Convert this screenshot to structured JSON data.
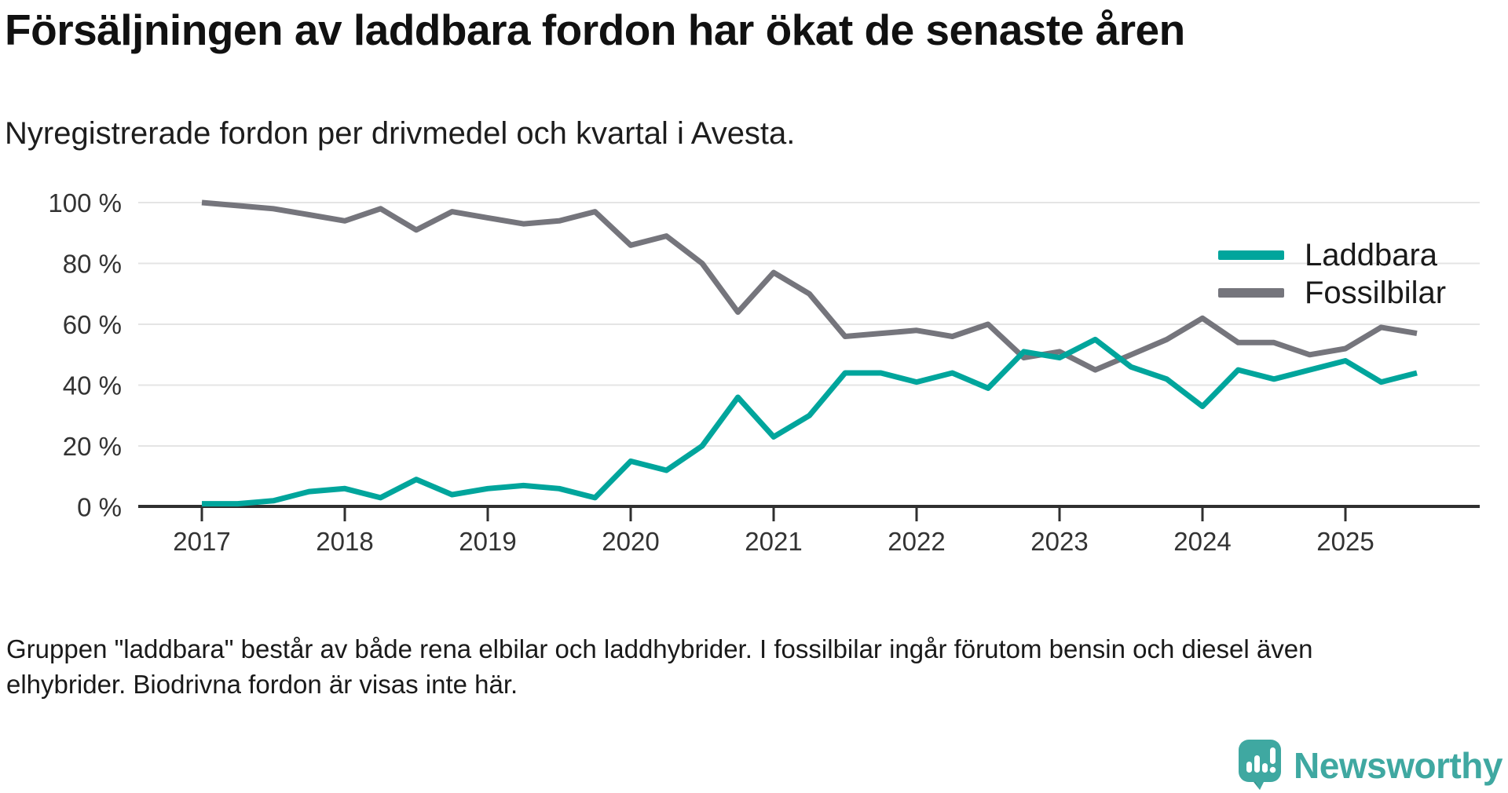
{
  "header": {
    "title": "Försäljningen av laddbara fordon har ökat de senaste åren",
    "subtitle": "Nyregistrerade fordon per drivmedel och kvartal i Avesta."
  },
  "legend": {
    "items": [
      {
        "label": "Laddbara",
        "color": "#00a59c"
      },
      {
        "label": "Fossilbilar",
        "color": "#75757c"
      }
    ]
  },
  "footer": {
    "note_line1": "Gruppen \"laddbara\" består av både rena elbilar och laddhybrider. I fossilbilar ingår förutom bensin och diesel även",
    "note_line2": "elhybrider. Biodrivna fordon är visas inte här."
  },
  "branding": {
    "name": "Newsworthy",
    "color": "#3fa8a1",
    "icon": "newsworthy-speech-bubble-chart-icon"
  },
  "chart_data": {
    "type": "line",
    "title": "Försäljningen av laddbara fordon har ökat de senaste åren",
    "subtitle": "Nyregistrerade fordon per drivmedel och kvartal i Avesta.",
    "x_unit": "quarter",
    "x": [
      "2017 Q1",
      "2017 Q2",
      "2017 Q3",
      "2017 Q4",
      "2018 Q1",
      "2018 Q2",
      "2018 Q3",
      "2018 Q4",
      "2019 Q1",
      "2019 Q2",
      "2019 Q3",
      "2019 Q4",
      "2020 Q1",
      "2020 Q2",
      "2020 Q3",
      "2020 Q4",
      "2021 Q1",
      "2021 Q2",
      "2021 Q3",
      "2021 Q4",
      "2022 Q1",
      "2022 Q2",
      "2022 Q3",
      "2022 Q4",
      "2023 Q1",
      "2023 Q2",
      "2023 Q3",
      "2023 Q4",
      "2024 Q1",
      "2024 Q2",
      "2024 Q3",
      "2024 Q4",
      "2025 Q1",
      "2025 Q2",
      "2025 Q3"
    ],
    "series": [
      {
        "name": "Laddbara",
        "color": "#00a59c",
        "values": [
          1,
          1,
          2,
          5,
          6,
          3,
          9,
          4,
          6,
          7,
          6,
          3,
          15,
          12,
          20,
          36,
          23,
          30,
          44,
          44,
          41,
          44,
          39,
          51,
          49,
          55,
          46,
          42,
          33,
          45,
          42,
          45,
          48,
          41,
          44
        ]
      },
      {
        "name": "Fossilbilar",
        "color": "#75757c",
        "values": [
          100,
          99,
          98,
          96,
          94,
          98,
          91,
          97,
          95,
          93,
          94,
          97,
          86,
          89,
          80,
          64,
          77,
          70,
          56,
          57,
          58,
          56,
          60,
          49,
          51,
          45,
          50,
          55,
          62,
          54,
          54,
          50,
          52,
          59,
          57
        ]
      }
    ],
    "ylabel": "",
    "xlabel": "",
    "ylim": [
      0,
      100
    ],
    "yticks": [
      {
        "value": 0,
        "label": "0 %"
      },
      {
        "value": 20,
        "label": "20 %"
      },
      {
        "value": 40,
        "label": "40 %"
      },
      {
        "value": 60,
        "label": "60 %"
      },
      {
        "value": 80,
        "label": "80 %"
      },
      {
        "value": 100,
        "label": "100 %"
      }
    ],
    "xticks": [
      "2017",
      "2018",
      "2019",
      "2020",
      "2021",
      "2022",
      "2023",
      "2024",
      "2025"
    ],
    "grid": true,
    "legend_position": "right-inside-top",
    "colors": {
      "gridline": "#e4e4e4",
      "axis": "#2f2f2f",
      "tick_text": "#333333"
    }
  }
}
